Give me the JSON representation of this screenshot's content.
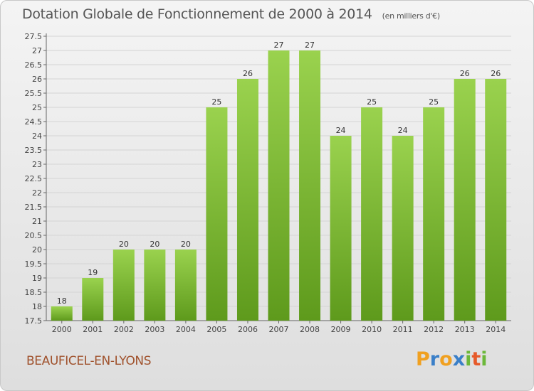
{
  "title": "Dotation Globale de Fonctionnement de 2000 à 2014",
  "subtitle": "(en milliers d'€)",
  "commune": "BEAUFICEL-EN-LYONS",
  "logo": {
    "letters": [
      "P",
      "r",
      "o",
      "x",
      "i",
      "t",
      "i"
    ],
    "colors": [
      "#f0a020",
      "#3a7fc8",
      "#f0a020",
      "#3a7fc8",
      "#6cb83a",
      "#e65a2a",
      "#6cb83a"
    ]
  },
  "colors": {
    "bar_top": "#9ad24e",
    "bar_bottom": "#5e9a1c",
    "grid": "#d4d4d4"
  },
  "chart_data": {
    "type": "bar",
    "title": "Dotation Globale de Fonctionnement de 2000 à 2014",
    "subtitle": "(en milliers d'€)",
    "categories": [
      "2000",
      "2001",
      "2002",
      "2003",
      "2004",
      "2005",
      "2006",
      "2007",
      "2008",
      "2009",
      "2010",
      "2011",
      "2012",
      "2013",
      "2014"
    ],
    "values": [
      18,
      19,
      20,
      20,
      20,
      25,
      26,
      27,
      27,
      24,
      25,
      24,
      25,
      26,
      26
    ],
    "data_labels": [
      "18",
      "19",
      "20",
      "20",
      "20",
      "25",
      "26",
      "27",
      "27",
      "24",
      "25",
      "24",
      "25",
      "26",
      "26"
    ],
    "ylim": [
      17.5,
      27.5
    ],
    "yticks": [
      "17.5",
      "18",
      "18.5",
      "19",
      "19.5",
      "20",
      "20.5",
      "21",
      "21.5",
      "22",
      "22.5",
      "23",
      "23.5",
      "24",
      "24.5",
      "25",
      "25.5",
      "26",
      "26.5",
      "27",
      "27.5"
    ],
    "grid": true,
    "xlabel": "",
    "ylabel": ""
  }
}
